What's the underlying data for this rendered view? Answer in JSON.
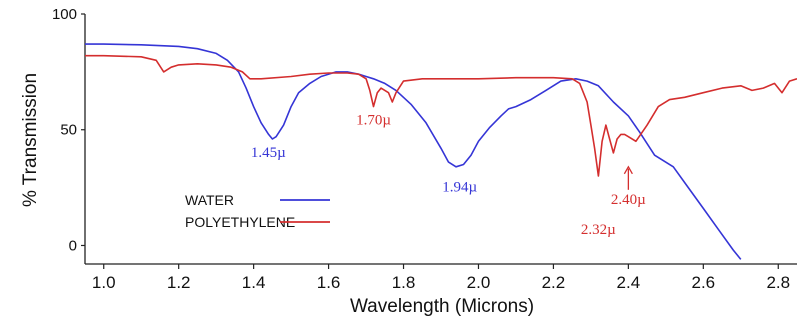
{
  "chart_data": {
    "type": "line",
    "title": "",
    "xlabel": "Wavelength  (Microns)",
    "ylabel": "% Transmission",
    "xlim": [
      0.95,
      2.85
    ],
    "ylim": [
      -8,
      100
    ],
    "x_ticks": [
      {
        "value": 1.0,
        "label": "1.0"
      },
      {
        "value": 1.2,
        "label": "1.2"
      },
      {
        "value": 1.4,
        "label": "1.4"
      },
      {
        "value": 1.6,
        "label": "1.6"
      },
      {
        "value": 1.8,
        "label": "1.8"
      },
      {
        "value": 2.0,
        "label": "2.0"
      },
      {
        "value": 2.2,
        "label": "2.2"
      },
      {
        "value": 2.4,
        "label": "2.4"
      },
      {
        "value": 2.6,
        "label": "2.6"
      },
      {
        "value": 2.8,
        "label": "2.8"
      }
    ],
    "y_ticks": [
      {
        "value": 0,
        "label": "0"
      },
      {
        "value": 50,
        "label": "50"
      },
      {
        "value": 100,
        "label": "100"
      }
    ],
    "grid": false,
    "legend_position": "bottom-left",
    "series": [
      {
        "name": "WATER",
        "color": "#3535d6",
        "x": [
          0.95,
          1.0,
          1.1,
          1.2,
          1.25,
          1.3,
          1.33,
          1.36,
          1.38,
          1.4,
          1.42,
          1.44,
          1.45,
          1.46,
          1.48,
          1.5,
          1.52,
          1.55,
          1.58,
          1.62,
          1.65,
          1.68,
          1.7,
          1.72,
          1.75,
          1.78,
          1.82,
          1.86,
          1.9,
          1.92,
          1.94,
          1.96,
          1.98,
          2.0,
          2.03,
          2.06,
          2.08,
          2.1,
          2.14,
          2.18,
          2.22,
          2.26,
          2.29,
          2.32,
          2.36,
          2.4,
          2.43,
          2.47,
          2.52,
          2.56,
          2.6,
          2.64,
          2.68,
          2.7
        ],
        "y": [
          87,
          87,
          86.7,
          86,
          85,
          83,
          80,
          75,
          68,
          60,
          53,
          48,
          46,
          47,
          52,
          60,
          66,
          70,
          73,
          75,
          75,
          74,
          73,
          72,
          70,
          67,
          61,
          53,
          42,
          36,
          34,
          35,
          39,
          45,
          51,
          56,
          59,
          60,
          63,
          67,
          71,
          72,
          71,
          69,
          62,
          56,
          49,
          39,
          34,
          25,
          16,
          7,
          -2,
          -6
        ]
      },
      {
        "name": "POLYETHYLENE",
        "color": "#d42e2e",
        "x": [
          0.95,
          1.0,
          1.1,
          1.14,
          1.16,
          1.18,
          1.2,
          1.25,
          1.3,
          1.34,
          1.37,
          1.39,
          1.42,
          1.5,
          1.55,
          1.6,
          1.65,
          1.68,
          1.7,
          1.71,
          1.72,
          1.73,
          1.74,
          1.76,
          1.77,
          1.78,
          1.8,
          1.85,
          1.9,
          2.0,
          2.1,
          2.2,
          2.25,
          2.27,
          2.29,
          2.3,
          2.31,
          2.32,
          2.33,
          2.34,
          2.35,
          2.36,
          2.37,
          2.38,
          2.39,
          2.4,
          2.42,
          2.45,
          2.48,
          2.51,
          2.55,
          2.6,
          2.65,
          2.7,
          2.73,
          2.76,
          2.79,
          2.81,
          2.83,
          2.85
        ],
        "y": [
          82,
          82,
          81.5,
          80,
          75,
          77,
          78,
          78.5,
          78,
          77,
          75,
          72,
          72,
          73,
          74,
          74.5,
          74.5,
          74,
          72,
          67,
          60,
          66,
          68,
          66,
          62,
          66,
          71,
          72,
          72,
          72,
          72.5,
          72.5,
          72,
          70,
          62,
          52,
          42,
          30,
          45,
          52,
          46,
          40,
          46,
          48,
          48,
          47,
          45,
          52,
          60,
          63,
          64,
          66,
          68,
          69,
          67,
          68,
          70,
          66,
          71,
          72
        ]
      }
    ],
    "annotations": [
      {
        "label": "1.45µ",
        "series": "WATER",
        "x": 1.45
      },
      {
        "label": "1.70µ",
        "series": "POLYETHYLENE",
        "x": 1.72
      },
      {
        "label": "1.94µ",
        "series": "WATER",
        "x": 1.95
      },
      {
        "label": "2.32µ",
        "series": "POLYETHYLENE",
        "x": 2.32
      },
      {
        "label": "2.40µ",
        "series": "POLYETHYLENE",
        "x": 2.4
      }
    ]
  }
}
